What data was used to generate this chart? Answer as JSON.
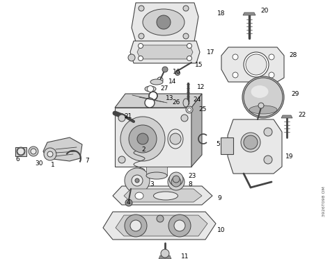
{
  "bg_color": "#ffffff",
  "lc": "#444444",
  "fc_light": "#e8e8e8",
  "fc_mid": "#d0d0d0",
  "fc_dark": "#b0b0b0",
  "fc_darker": "#909090",
  "watermark": "3926T098 OM",
  "figsize": [
    4.74,
    3.73
  ],
  "dpi": 100
}
